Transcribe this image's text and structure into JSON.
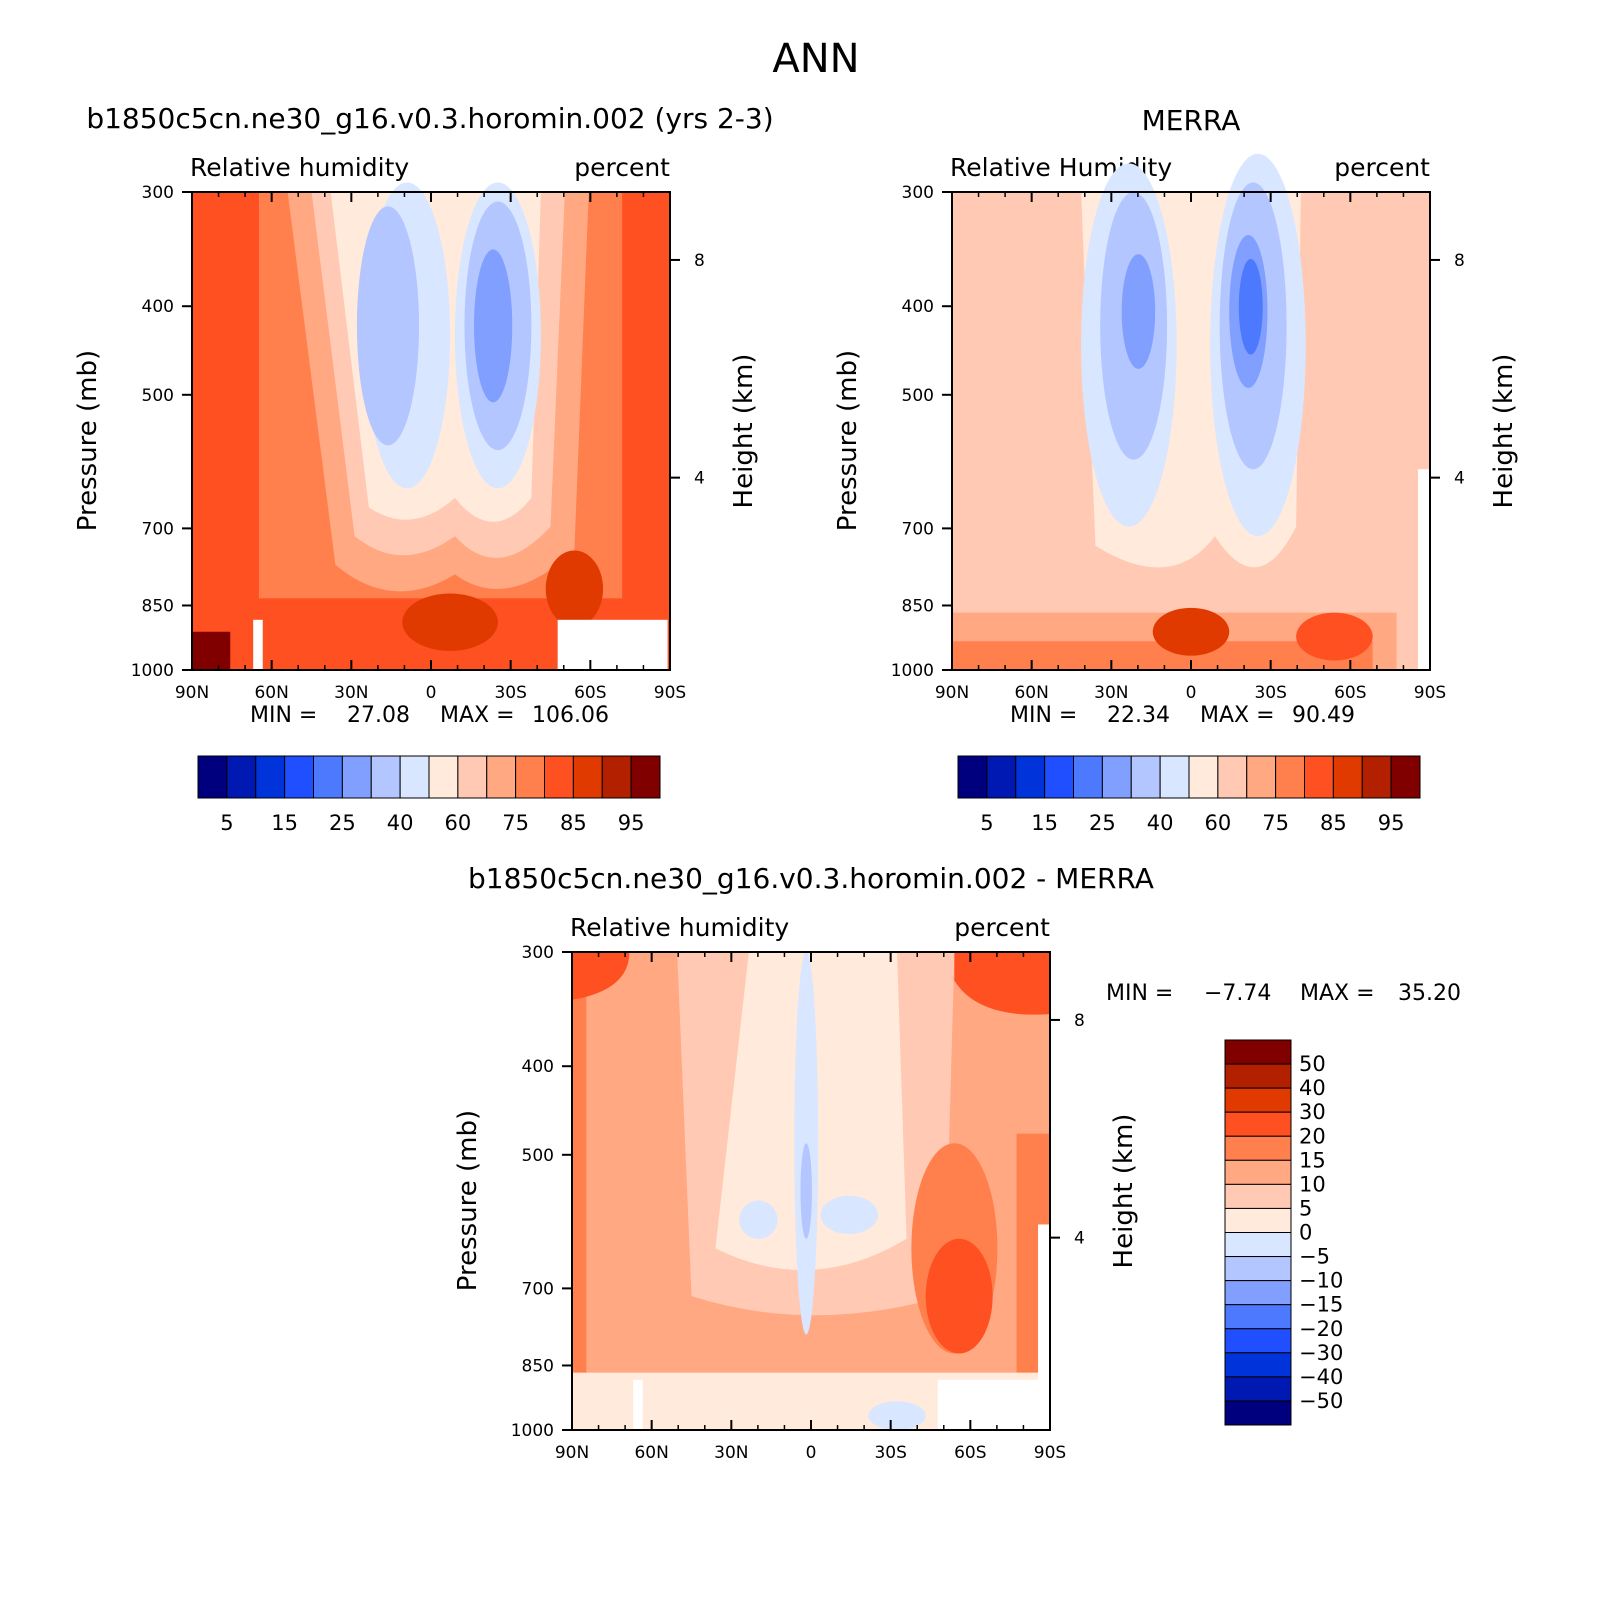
{
  "main_title": "ANN",
  "colors": {
    "rh_scale": [
      "#00007f",
      "#0019b3",
      "#0033d9",
      "#1f4fff",
      "#4d79ff",
      "#809fff",
      "#b3c6ff",
      "#d9e6ff",
      "#ffeadb",
      "#ffc9b3",
      "#ffa882",
      "#ff7f4d",
      "#ff5022",
      "#e03a00",
      "#b32000",
      "#800000"
    ],
    "diff_scale": [
      "#00007f",
      "#0019b3",
      "#0033d9",
      "#1f4fff",
      "#4d79ff",
      "#809fff",
      "#b3c6ff",
      "#d9e6ff",
      "#ffeadb",
      "#ffc9b3",
      "#ffa882",
      "#ff7f4d",
      "#ff5022",
      "#e03a00",
      "#b32000",
      "#800000"
    ]
  },
  "chart_data": [
    {
      "type": "heatmap",
      "title": "b1850c5cn.ne30_g16.v0.3.horomin.002 (yrs 2-3)",
      "variable": "Relative humidity",
      "units": "percent",
      "xlabel": "",
      "ylabel": "Pressure (mb)",
      "y2label": "Height (km)",
      "x_ticks": [
        "90N",
        "60N",
        "30N",
        "0",
        "30S",
        "60S",
        "90S"
      ],
      "y_ticks": [
        "300",
        "400",
        "500",
        "700",
        "850",
        "1000"
      ],
      "y2_ticks": [
        "8",
        "4"
      ],
      "y_scale": "log",
      "ylim": [
        1000,
        300
      ],
      "min_label": "MIN =",
      "min": "27.08",
      "max_label": "MAX =",
      "max": "106.06",
      "colorbar_labels": [
        "5",
        "15",
        "25",
        "40",
        "60",
        "75",
        "85",
        "95"
      ],
      "colorbar_orientation": "horizontal"
    },
    {
      "type": "heatmap",
      "title": "MERRA",
      "variable": "Relative Humidity",
      "units": "percent",
      "xlabel": "",
      "ylabel": "Pressure (mb)",
      "y2label": "Height (km)",
      "x_ticks": [
        "90N",
        "60N",
        "30N",
        "0",
        "30S",
        "60S",
        "90S"
      ],
      "y_ticks": [
        "300",
        "400",
        "500",
        "700",
        "850",
        "1000"
      ],
      "y2_ticks": [
        "8",
        "4"
      ],
      "y_scale": "log",
      "ylim": [
        1000,
        300
      ],
      "min_label": "MIN =",
      "min": "22.34",
      "max_label": "MAX =",
      "max": "90.49",
      "colorbar_labels": [
        "5",
        "15",
        "25",
        "40",
        "60",
        "75",
        "85",
        "95"
      ],
      "colorbar_orientation": "horizontal"
    },
    {
      "type": "heatmap",
      "title": "b1850c5cn.ne30_g16.v0.3.horomin.002 - MERRA",
      "variable": "Relative humidity",
      "units": "percent",
      "xlabel": "",
      "ylabel": "Pressure (mb)",
      "y2label": "Height (km)",
      "x_ticks": [
        "90N",
        "60N",
        "30N",
        "0",
        "30S",
        "60S",
        "90S"
      ],
      "y_ticks": [
        "300",
        "400",
        "500",
        "700",
        "850",
        "1000"
      ],
      "y2_ticks": [
        "8",
        "4"
      ],
      "y_scale": "log",
      "ylim": [
        1000,
        300
      ],
      "min_label": "MIN =",
      "min": "-7.74",
      "max_label": "MAX =",
      "max": "35.20",
      "colorbar_labels": [
        "50",
        "40",
        "30",
        "20",
        "15",
        "10",
        "5",
        "0",
        "-5",
        "-10",
        "-15",
        "-20",
        "-30",
        "-40",
        "-50"
      ],
      "colorbar_orientation": "vertical"
    }
  ]
}
